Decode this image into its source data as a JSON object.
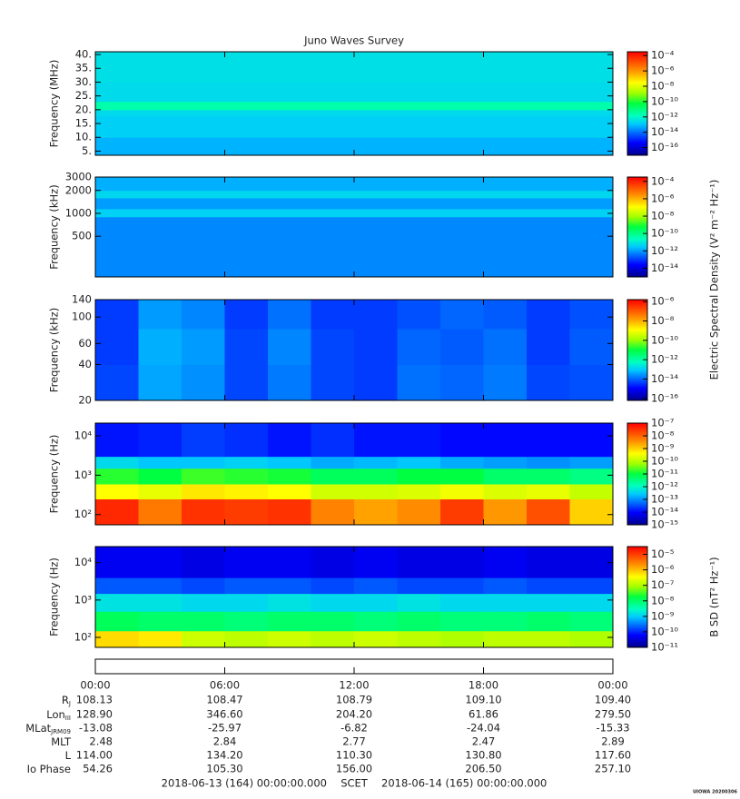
{
  "title": "Juno Waves Survey",
  "xlim": [
    0,
    24
  ],
  "xticks": [
    {
      "value": 0,
      "label": "00:00"
    },
    {
      "value": 6,
      "label": "06:00"
    },
    {
      "value": 12,
      "label": "12:00"
    },
    {
      "value": 18,
      "label": "18:00"
    },
    {
      "value": 24,
      "label": "00:00"
    }
  ],
  "chart_data": [
    {
      "type": "spectrogram",
      "ylabel": "Frequency (MHz)",
      "yscale": "linear",
      "ylim": [
        3.5,
        41
      ],
      "yticks": [
        {
          "value": 5,
          "label": "5."
        },
        {
          "value": 10,
          "label": "10."
        },
        {
          "value": 15,
          "label": "15."
        },
        {
          "value": 20,
          "label": "20."
        },
        {
          "value": 25,
          "label": "25."
        },
        {
          "value": 30,
          "label": "30."
        },
        {
          "value": 35,
          "label": "35."
        },
        {
          "value": 40,
          "label": "40."
        }
      ],
      "zlim": [
        -17,
        -3.5
      ],
      "zticks": [
        {
          "value": -4,
          "label": "10⁻⁴"
        },
        {
          "value": -6,
          "label": "10⁻⁶"
        },
        {
          "value": -8,
          "label": "10⁻⁸"
        },
        {
          "value": -10,
          "label": "10⁻¹⁰"
        },
        {
          "value": -12,
          "label": "10⁻¹²"
        },
        {
          "value": -14,
          "label": "10⁻¹⁴"
        },
        {
          "value": -16,
          "label": "10⁻¹⁶"
        }
      ],
      "time_bins": [
        0,
        24
      ],
      "freq_bins": [
        3.5,
        10,
        18,
        20,
        23,
        30,
        41
      ],
      "values": [
        [
          -13.2
        ],
        [
          -12.8
        ],
        [
          -12.6
        ],
        [
          -11.6
        ],
        [
          -12.6
        ],
        [
          -12.5
        ]
      ]
    },
    {
      "type": "spectrogram",
      "ylabel": "Frequency (kHz)",
      "yscale": "log",
      "ylim": [
        146,
        3000
      ],
      "yticks": [
        500,
        1000,
        2000,
        3000
      ],
      "zlim": [
        -15,
        -3.5
      ],
      "zticks": [
        {
          "value": -4,
          "label": "10⁻⁴"
        },
        {
          "value": -6,
          "label": "10⁻⁶"
        },
        {
          "value": -8,
          "label": "10⁻⁸"
        },
        {
          "value": -10,
          "label": "10⁻¹⁰"
        },
        {
          "value": -12,
          "label": "10⁻¹²"
        },
        {
          "value": -14,
          "label": "10⁻¹⁴"
        }
      ],
      "time_bins": [
        0,
        24
      ],
      "freq_bins": [
        146,
        900,
        1150,
        1600,
        2000,
        3000
      ],
      "values": [
        [
          -12.2
        ],
        [
          -11.4
        ],
        [
          -12.0
        ],
        [
          -11.3
        ],
        [
          -11.8
        ]
      ]
    },
    {
      "type": "spectrogram",
      "ylabel": "Frequency (kHz)",
      "yscale": "log",
      "ylim": [
        20,
        140
      ],
      "yticks": [
        20,
        40,
        60,
        100,
        140
      ],
      "zlim": [
        -16.2,
        -5.8
      ],
      "zticks": [
        {
          "value": -6,
          "label": "10⁻⁶"
        },
        {
          "value": -8,
          "label": "10⁻⁸"
        },
        {
          "value": -10,
          "label": "10⁻¹⁰"
        },
        {
          "value": -12,
          "label": "10⁻¹²"
        },
        {
          "value": -14,
          "label": "10⁻¹⁴"
        },
        {
          "value": -16,
          "label": "10⁻¹⁶"
        }
      ],
      "colorbar_label": "Electric Spectral Density (V² m⁻² Hz⁻¹)",
      "time_bins": [
        0,
        2,
        4,
        6,
        8,
        10,
        12,
        14,
        16,
        18,
        20,
        22,
        24
      ],
      "freq_bins": [
        20,
        40,
        80,
        140
      ],
      "values": [
        [
          -14.3,
          -13.4,
          -13.6,
          -14.3,
          -13.8,
          -14.3,
          -14.4,
          -13.9,
          -14.0,
          -13.8,
          -14.3,
          -14.2
        ],
        [
          -14.4,
          -13.3,
          -13.5,
          -14.3,
          -13.7,
          -14.3,
          -14.4,
          -14.0,
          -14.1,
          -13.9,
          -14.4,
          -14.1
        ],
        [
          -14.4,
          -13.5,
          -13.7,
          -14.4,
          -13.9,
          -14.4,
          -14.4,
          -14.2,
          -14.0,
          -14.1,
          -14.4,
          -14.2
        ]
      ]
    },
    {
      "type": "spectrogram",
      "ylabel": "Frequency (Hz)",
      "yscale": "log",
      "ylim": [
        55,
        21000
      ],
      "yticks": [
        {
          "value": 100,
          "label": "10²"
        },
        {
          "value": 1000,
          "label": "10³"
        },
        {
          "value": 10000,
          "label": "10⁴"
        }
      ],
      "zlim": [
        -15,
        -7
      ],
      "zticks": [
        {
          "value": -7,
          "label": "10⁻⁷"
        },
        {
          "value": -8,
          "label": "10⁻⁸"
        },
        {
          "value": -9,
          "label": "10⁻⁹"
        },
        {
          "value": -10,
          "label": "10⁻¹⁰"
        },
        {
          "value": -11,
          "label": "10⁻¹¹"
        },
        {
          "value": -12,
          "label": "10⁻¹²"
        },
        {
          "value": -13,
          "label": "10⁻¹³"
        },
        {
          "value": -14,
          "label": "10⁻¹⁴"
        },
        {
          "value": -15,
          "label": "10⁻¹⁵"
        }
      ],
      "time_bins": [
        0,
        2,
        4,
        6,
        8,
        10,
        12,
        14,
        16,
        18,
        20,
        22,
        24
      ],
      "freq_bins": [
        55,
        250,
        600,
        1500,
        3000,
        21000
      ],
      "values": [
        [
          -7.4,
          -8.2,
          -7.5,
          -7.6,
          -7.5,
          -8.3,
          -8.6,
          -8.4,
          -7.6,
          -8.5,
          -7.8,
          -9.0
        ],
        [
          -9.4,
          -9.6,
          -9.2,
          -9.3,
          -9.4,
          -9.8,
          -9.8,
          -9.7,
          -9.5,
          -9.7,
          -9.6,
          -9.9
        ],
        [
          -10.8,
          -11.0,
          -10.7,
          -10.8,
          -10.9,
          -11.2,
          -11.2,
          -11.0,
          -11.0,
          -11.3,
          -11.3,
          -11.5
        ],
        [
          -12.4,
          -12.6,
          -12.6,
          -12.5,
          -12.6,
          -12.8,
          -12.7,
          -12.6,
          -12.8,
          -12.9,
          -13.0,
          -12.9
        ],
        [
          -13.9,
          -13.8,
          -13.6,
          -13.7,
          -13.9,
          -13.7,
          -13.9,
          -13.9,
          -14.0,
          -14.0,
          -14.0,
          -14.0
        ]
      ]
    },
    {
      "type": "spectrogram",
      "ylabel": "Frequency (Hz)",
      "yscale": "log",
      "ylim": [
        54,
        27000
      ],
      "yticks": [
        {
          "value": 100,
          "label": "10²"
        },
        {
          "value": 1000,
          "label": "10³"
        },
        {
          "value": 10000,
          "label": "10⁴"
        }
      ],
      "zlim": [
        -11,
        -4.5
      ],
      "zticks": [
        {
          "value": -5,
          "label": "10⁻⁵"
        },
        {
          "value": -6,
          "label": "10⁻⁶"
        },
        {
          "value": -7,
          "label": "10⁻⁷"
        },
        {
          "value": -8,
          "label": "10⁻⁸"
        },
        {
          "value": -9,
          "label": "10⁻⁹"
        },
        {
          "value": -10,
          "label": "10⁻¹⁰"
        },
        {
          "value": -11,
          "label": "10⁻¹¹"
        }
      ],
      "colorbar_label": "B SD (nT² Hz⁻¹)",
      "time_bins": [
        0,
        2,
        4,
        6,
        8,
        10,
        12,
        14,
        16,
        18,
        20,
        22,
        24
      ],
      "freq_bins": [
        54,
        150,
        500,
        1500,
        4000,
        27000
      ],
      "values": [
        [
          -6.2,
          -6.3,
          -6.8,
          -6.9,
          -6.8,
          -6.9,
          -6.8,
          -6.9,
          -7.0,
          -6.9,
          -6.9,
          -7.0
        ],
        [
          -7.9,
          -8.0,
          -8.0,
          -8.1,
          -8.0,
          -8.0,
          -8.1,
          -8.0,
          -8.1,
          -8.1,
          -8.0,
          -8.1
        ],
        [
          -8.8,
          -8.8,
          -8.9,
          -8.9,
          -8.8,
          -8.9,
          -8.9,
          -8.8,
          -8.9,
          -8.9,
          -8.9,
          -8.9
        ],
        [
          -9.7,
          -9.7,
          -9.8,
          -9.7,
          -9.7,
          -9.8,
          -9.7,
          -9.8,
          -9.8,
          -9.7,
          -9.8,
          -9.8
        ],
        [
          -10.3,
          -10.3,
          -10.4,
          -10.3,
          -10.3,
          -10.4,
          -10.3,
          -10.4,
          -10.4,
          -10.3,
          -10.4,
          -10.4
        ]
      ]
    }
  ],
  "ephemeris": [
    {
      "label": "R",
      "sub": "J",
      "values": [
        "108.13",
        "108.47",
        "108.79",
        "109.10",
        "109.40"
      ]
    },
    {
      "label": "Lon",
      "sub": "III",
      "values": [
        "128.90",
        "346.60",
        "204.20",
        "61.86",
        "279.50"
      ]
    },
    {
      "label": "MLat",
      "sub": "JRM09",
      "values": [
        "-13.08",
        "-25.97",
        "-6.82",
        "-24.04",
        "-15.33"
      ]
    },
    {
      "label": "MLT",
      "values": [
        "2.48",
        "2.84",
        "2.77",
        "2.47",
        "2.89"
      ]
    },
    {
      "label": "L",
      "values": [
        "114.00",
        "134.20",
        "110.30",
        "130.80",
        "117.60"
      ]
    },
    {
      "label": "Io Phase",
      "values": [
        "54.26",
        "105.30",
        "156.00",
        "206.50",
        "257.10"
      ]
    }
  ],
  "footer": {
    "start": "2018-06-13 (164) 00:00:00.000",
    "scet": "SCET",
    "end": "2018-06-14 (165) 00:00:00.000"
  },
  "stamp": "UIOWA 20200306"
}
